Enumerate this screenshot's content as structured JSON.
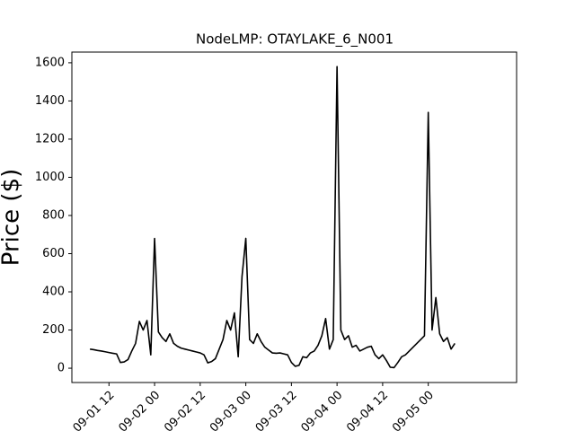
{
  "chart_data": {
    "type": "line",
    "title": "NodeLMP: OTAYLAKE_6_N001",
    "y_label": "Price ($)",
    "color": "#000000",
    "x": [
      7,
      8,
      9,
      10,
      11,
      12,
      13,
      14,
      15,
      16,
      17,
      18,
      19,
      20,
      21,
      22,
      23,
      24,
      25,
      26,
      27,
      28,
      29,
      30,
      31,
      32,
      33,
      34,
      35,
      36,
      37,
      38,
      39,
      40,
      41,
      42,
      43,
      44,
      45,
      46,
      47,
      48,
      49,
      50,
      51,
      52,
      53,
      54,
      55,
      56,
      57,
      58,
      59,
      60,
      61,
      62,
      63,
      64,
      65,
      66,
      67,
      68,
      69,
      70,
      71,
      72,
      73,
      74,
      75,
      76,
      77,
      78,
      79,
      80,
      81,
      82,
      83,
      84,
      85,
      86,
      87,
      88,
      89,
      90,
      91,
      92,
      93,
      94,
      95,
      96,
      97,
      98,
      99,
      100,
      101,
      102,
      103
    ],
    "values": [
      100,
      97,
      93,
      90,
      86,
      82,
      78,
      75,
      30,
      33,
      45,
      90,
      130,
      245,
      200,
      250,
      70,
      680,
      190,
      160,
      140,
      180,
      130,
      115,
      105,
      100,
      95,
      90,
      85,
      80,
      70,
      28,
      35,
      50,
      100,
      150,
      250,
      200,
      290,
      60,
      480,
      680,
      150,
      130,
      180,
      140,
      110,
      95,
      80,
      78,
      80,
      75,
      70,
      30,
      10,
      15,
      60,
      55,
      80,
      90,
      120,
      170,
      260,
      100,
      150,
      1580,
      200,
      150,
      170,
      110,
      120,
      90,
      100,
      110,
      115,
      70,
      50,
      70,
      40,
      5,
      3,
      30,
      60,
      70,
      90,
      110,
      130,
      150,
      170,
      1340,
      200,
      370,
      180,
      140,
      160,
      100,
      130
    ],
    "xlim": [
      2.24,
      119.24
    ],
    "ylim": [
      -75,
      1656
    ],
    "xticks": [
      {
        "value": 12,
        "label": "09-01 12"
      },
      {
        "value": 24,
        "label": "09-02 00"
      },
      {
        "value": 36,
        "label": "09-02 12"
      },
      {
        "value": 48,
        "label": "09-03 00"
      },
      {
        "value": 60,
        "label": "09-03 12"
      },
      {
        "value": 72,
        "label": "09-04 00"
      },
      {
        "value": 84,
        "label": "09-04 12"
      },
      {
        "value": 96,
        "label": "09-05 00"
      }
    ],
    "yticks": [
      0,
      200,
      400,
      600,
      800,
      1000,
      1200,
      1400,
      1600
    ]
  }
}
